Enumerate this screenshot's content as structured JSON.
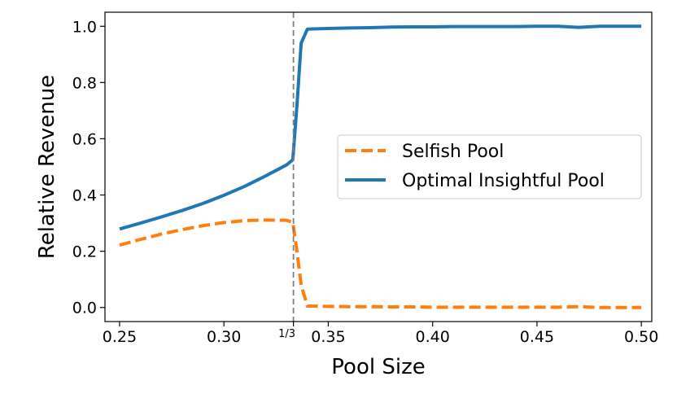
{
  "chart_data": {
    "type": "line",
    "xlabel": "Pool Size",
    "ylabel": "Relative Revenue",
    "xlim": [
      0.243,
      0.505
    ],
    "ylim": [
      -0.05,
      1.05
    ],
    "x_ticks": [
      {
        "value": 0.25,
        "label": "0.25"
      },
      {
        "value": 0.3,
        "label": "0.30"
      },
      {
        "value": 0.35,
        "label": "0.35"
      },
      {
        "value": 0.4,
        "label": "0.40"
      },
      {
        "value": 0.45,
        "label": "0.45"
      },
      {
        "value": 0.5,
        "label": "0.50"
      }
    ],
    "y_ticks": [
      {
        "value": 0.0,
        "label": "0.0"
      },
      {
        "value": 0.2,
        "label": "0.2"
      },
      {
        "value": 0.4,
        "label": "0.4"
      },
      {
        "value": 0.6,
        "label": "0.6"
      },
      {
        "value": 0.8,
        "label": "0.8"
      },
      {
        "value": 1.0,
        "label": "1.0"
      }
    ],
    "vline": {
      "x": 0.3333,
      "label": "1/3",
      "style": "dashed",
      "color": "#7f7f7f"
    },
    "grid": false,
    "legend_position": "center-right",
    "series": [
      {
        "name": "Selfish Pool",
        "color": "#ff7f0e",
        "style": "dashed",
        "x": [
          0.25,
          0.26,
          0.27,
          0.28,
          0.29,
          0.3,
          0.31,
          0.32,
          0.33,
          0.333,
          0.335,
          0.337,
          0.34,
          0.35,
          0.36,
          0.37,
          0.38,
          0.39,
          0.4,
          0.41,
          0.42,
          0.43,
          0.44,
          0.45,
          0.46,
          0.47,
          0.48,
          0.49,
          0.5
        ],
        "values": [
          0.222,
          0.242,
          0.261,
          0.277,
          0.291,
          0.302,
          0.309,
          0.311,
          0.31,
          0.303,
          0.2,
          0.08,
          0.005,
          0.004,
          0.003,
          0.003,
          0.002,
          0.002,
          0.001,
          0.001,
          0.001,
          0.001,
          0.001,
          0.001,
          0.001,
          0.003,
          0.0,
          0.0,
          0.0
        ]
      },
      {
        "name": "Optimal Insightful Pool",
        "color": "#1f77b4",
        "style": "solid",
        "x": [
          0.25,
          0.26,
          0.27,
          0.28,
          0.29,
          0.3,
          0.31,
          0.32,
          0.33,
          0.333,
          0.335,
          0.337,
          0.34,
          0.35,
          0.36,
          0.37,
          0.38,
          0.39,
          0.4,
          0.41,
          0.42,
          0.43,
          0.44,
          0.45,
          0.46,
          0.47,
          0.48,
          0.49,
          0.5
        ],
        "values": [
          0.279,
          0.3,
          0.322,
          0.345,
          0.37,
          0.399,
          0.431,
          0.468,
          0.507,
          0.525,
          0.72,
          0.94,
          0.99,
          0.992,
          0.994,
          0.995,
          0.997,
          0.998,
          0.998,
          0.999,
          0.999,
          0.999,
          0.999,
          1.0,
          1.0,
          0.996,
          1.0,
          1.0,
          1.0
        ]
      }
    ]
  }
}
